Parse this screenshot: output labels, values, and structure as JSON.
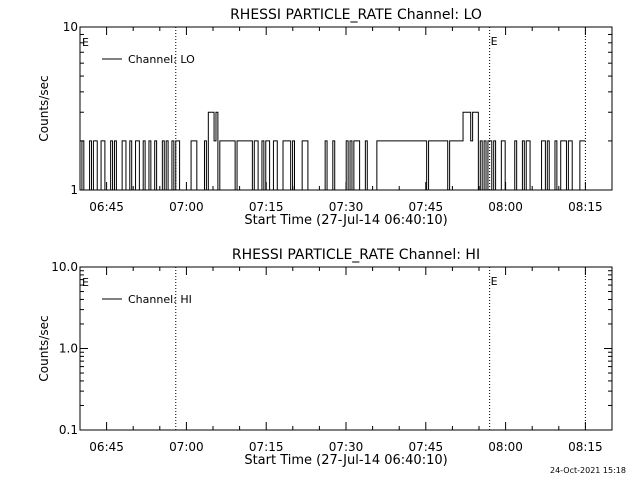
{
  "timestamp": "24-Oct-2021 15:18",
  "chart_data": [
    {
      "type": "line",
      "title": "RHESSI PARTICLE_RATE Channel: LO",
      "xlabel": "Start Time (27-Jul-14 06:40:10)",
      "ylabel": "Counts/sec",
      "yscale": "log",
      "ylim": [
        1,
        10
      ],
      "yticks": [
        {
          "v": 1,
          "label": "1"
        },
        {
          "v": 10,
          "label": "10"
        }
      ],
      "xlim": [
        "06:40",
        "08:20"
      ],
      "xticks": [
        "06:45",
        "07:00",
        "07:15",
        "07:30",
        "07:45",
        "08:00",
        "08:15"
      ],
      "legend": {
        "label": "Channel: LO",
        "placement": "top-left"
      },
      "markers": [
        {
          "time": "06:58",
          "label": ""
        },
        {
          "time": "07:57",
          "label": "E"
        },
        {
          "time": "08:15",
          "label": ""
        }
      ],
      "edge_label": "E",
      "series": [
        {
          "values_pattern": "toggle",
          "time_range": [
            "06:40",
            "08:15"
          ],
          "levels": [
            1,
            2,
            3
          ],
          "baseline": 2,
          "floor": 1,
          "peaks": [
            {
              "start": "07:04",
              "end": "07:05",
              "value": 3
            },
            {
              "start": "07:07",
              "end": "07:08",
              "value": 3
            },
            {
              "start": "07:52",
              "end": "07:54",
              "value": 3
            }
          ]
        }
      ]
    },
    {
      "type": "line",
      "title": "RHESSI PARTICLE_RATE Channel: HI",
      "xlabel": "Start Time (27-Jul-14 06:40:10)",
      "ylabel": "Counts/sec",
      "yscale": "log",
      "ylim": [
        0.1,
        10
      ],
      "yticks": [
        {
          "v": 0.1,
          "label": "0.1"
        },
        {
          "v": 1,
          "label": "1.0"
        },
        {
          "v": 10,
          "label": "10.0"
        }
      ],
      "xlim": [
        "06:40",
        "08:20"
      ],
      "xticks": [
        "06:45",
        "07:00",
        "07:15",
        "07:30",
        "07:45",
        "08:00",
        "08:15"
      ],
      "legend": {
        "label": "Channel: HI",
        "placement": "top-left"
      },
      "markers": [
        {
          "time": "06:58",
          "label": ""
        },
        {
          "time": "07:57",
          "label": "E"
        },
        {
          "time": "08:15",
          "label": ""
        }
      ],
      "edge_label": "E",
      "series": []
    }
  ]
}
